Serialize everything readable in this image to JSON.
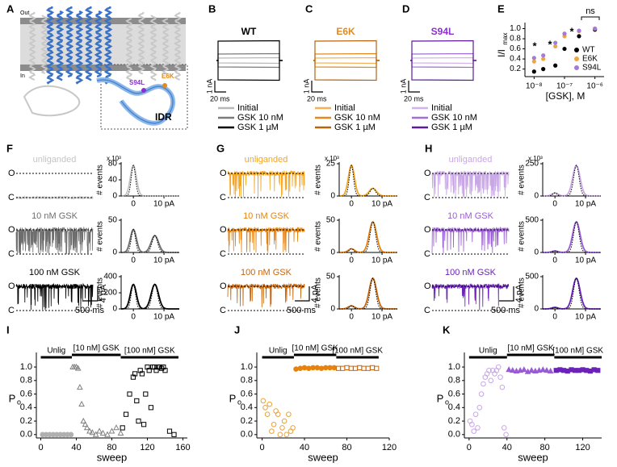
{
  "panels": {
    "A": {
      "label": "A",
      "out": "Out",
      "in": "In",
      "mut1": "S94L",
      "mut2": "E6K",
      "box": "IDR"
    },
    "B": {
      "label": "B",
      "title": "WT",
      "title_color": "#000000",
      "scale_y": "1 nA",
      "scale_x": "20 ms",
      "legend": [
        "Initial",
        "GSK 10 nM",
        "GSK 1 µM"
      ],
      "colors": [
        "#b8b8b8",
        "#7a7a7a",
        "#000000"
      ]
    },
    "C": {
      "label": "C",
      "title": "E6K",
      "title_color": "#e08a20",
      "scale_y": "1 nA",
      "scale_x": "20 ms",
      "legend": [
        "Initial",
        "GSK 10 nM",
        "GSK 1 µM"
      ],
      "colors": [
        "#f3b25a",
        "#e08a20",
        "#b8640f"
      ]
    },
    "D": {
      "label": "D",
      "title": "S94L",
      "title_color": "#8a2fd0",
      "scale_y": "1 nA",
      "scale_x": "20 ms",
      "legend": [
        "Initial",
        "GSK 10 nM",
        "GSK 1 µM"
      ],
      "colors": [
        "#d3b4ea",
        "#a06ed6",
        "#5d1a9c"
      ]
    },
    "E": {
      "label": "E",
      "ylabel": "I/I",
      "ylabel_sub": "max",
      "xlabel": "[GSK], M",
      "log_x": true,
      "xlim": [
        5e-09,
        2e-06
      ],
      "xticks": [
        {
          "value": 1e-08,
          "label": "10⁻⁸"
        },
        {
          "value": 1e-07,
          "label": "10⁻⁷"
        },
        {
          "value": 1e-06,
          "label": "10⁻⁶"
        }
      ],
      "ylim": [
        0.05,
        1.12
      ],
      "yticks": [
        0.2,
        0.4,
        0.6,
        0.8,
        {
          "value": 1,
          "label": "1.0"
        }
      ],
      "annotations": [
        "*",
        "*",
        "*",
        "ns"
      ],
      "series": [
        {
          "name": "WT",
          "color": "#000000",
          "x": [
            1e-08,
            2e-08,
            5e-08,
            1e-07,
            3e-07,
            1e-06
          ],
          "values": [
            0.15,
            0.2,
            0.27,
            0.6,
            0.85,
            0.98
          ]
        },
        {
          "name": "E6K",
          "color": "#f0a640",
          "x": [
            1e-08,
            2e-08,
            5e-08,
            1e-07,
            3e-07,
            1e-06
          ],
          "values": [
            0.35,
            0.4,
            0.65,
            0.85,
            0.95,
            1.0
          ]
        },
        {
          "name": "S94L",
          "color": "#a57ad8",
          "x": [
            1e-08,
            2e-08,
            5e-08,
            1e-07,
            3e-07,
            1e-06
          ],
          "values": [
            0.42,
            0.47,
            0.72,
            0.9,
            0.96,
            1.0
          ]
        }
      ]
    },
    "F": {
      "label": "F",
      "open": "O",
      "closed": "C",
      "hist_ylabel": "# events",
      "multiplier": "x 10³",
      "hist_xlim": [
        -4,
        15
      ],
      "hist_xticks": [
        0,
        {
          "value": 10,
          "label": "10 pA"
        }
      ],
      "scale_y": "4 pA",
      "scale_x": "500 ms",
      "rows": [
        {
          "label": "unliganded",
          "color": "#c4c4c4",
          "hist_yticks": [
            0,
            40,
            80
          ]
        },
        {
          "label": "10 nM GSK",
          "color": "#6e6e6e",
          "hist_yticks": [
            0,
            50
          ]
        },
        {
          "label": "100 nM GSK",
          "color": "#000000",
          "hist_yticks": [
            0,
            200,
            400
          ]
        }
      ]
    },
    "G": {
      "label": "G",
      "open": "O",
      "closed": "C",
      "hist_ylabel": "# events",
      "multiplier": "x 10³",
      "hist_xlim": [
        -4,
        15
      ],
      "hist_xticks": [
        0,
        {
          "value": 10,
          "label": "10 pA"
        }
      ],
      "scale_y": "4 pA",
      "scale_x": "500 ms",
      "rows": [
        {
          "label": "unliganded",
          "color": "#f5a623",
          "hist_yticks": [
            0,
            25
          ]
        },
        {
          "label": "10 nM GSK",
          "color": "#e8820e",
          "hist_yticks": [
            0,
            50
          ]
        },
        {
          "label": "100 nM GSK",
          "color": "#c8650a",
          "hist_yticks": [
            0,
            50
          ]
        }
      ]
    },
    "H": {
      "label": "H",
      "open": "O",
      "closed": "C",
      "hist_ylabel": "# events",
      "multiplier": "x 10³",
      "hist_xlim": [
        -4,
        15
      ],
      "hist_xticks": [
        0,
        {
          "value": 10,
          "label": "10 pA"
        }
      ],
      "scale_y": "4 pA",
      "scale_x": "500 ms",
      "rows": [
        {
          "label": "unliganded",
          "color": "#c9a6e6",
          "hist_yticks": [
            0,
            250
          ]
        },
        {
          "label": "10 nM GSK",
          "color": "#9a5bd6",
          "hist_yticks": [
            0,
            500
          ]
        },
        {
          "label": "100 nM GSK",
          "color": "#6a22b8",
          "hist_yticks": [
            0,
            500
          ]
        }
      ]
    },
    "I": {
      "label": "I",
      "ylabel": "P",
      "ylabel_sub": "o",
      "xlabel": "sweep",
      "xlim": [
        -5,
        165
      ],
      "xticks": [
        0,
        40,
        80,
        120,
        160
      ],
      "ylim": [
        -0.05,
        1.12
      ],
      "yticks": [
        {
          "value": 0,
          "label": "0.0"
        },
        0.2,
        0.4,
        0.6,
        0.8,
        {
          "value": 1,
          "label": "1.0"
        }
      ],
      "periods": [
        {
          "label": "Unlig",
          "from": 0,
          "to": 35
        },
        {
          "label": "[10 nM] GSK",
          "from": 35,
          "to": 90
        },
        {
          "label": "[100 nM] GSK",
          "from": 90,
          "to": 155
        }
      ],
      "series": [
        {
          "marker": "circle",
          "filled": true,
          "color": "#b0b0b0",
          "x": [
            2,
            6,
            10,
            14,
            18,
            22,
            26,
            30,
            34
          ],
          "values": [
            0,
            0,
            0,
            0,
            0,
            0,
            0,
            0,
            0
          ]
        },
        {
          "marker": "triangle",
          "filled": false,
          "color": "#808080",
          "x": [
            36,
            38,
            40,
            42,
            44,
            46,
            48,
            50,
            52,
            55,
            58,
            62,
            66,
            70,
            75,
            80,
            85,
            90
          ],
          "values": [
            1,
            1,
            1,
            0.98,
            0.7,
            0.45,
            0.2,
            0.15,
            0.1,
            0.05,
            0.03,
            0,
            0.05,
            0.02,
            0,
            0.05,
            0.1,
            0.02
          ]
        },
        {
          "marker": "square",
          "filled": false,
          "color": "#000000",
          "x": [
            92,
            96,
            100,
            104,
            106,
            108,
            110,
            112,
            114,
            116,
            118,
            120,
            122,
            124,
            126,
            128,
            130,
            132,
            134,
            136,
            138,
            140,
            145,
            150
          ],
          "values": [
            0.1,
            0.3,
            0.6,
            0.85,
            0.9,
            0.5,
            0.2,
            0.95,
            0.9,
            0.15,
            0.6,
            1,
            0.95,
            0.4,
            1,
            1,
            0.95,
            1,
            1,
            0.98,
            1,
            0.95,
            0.05,
            0
          ]
        }
      ]
    },
    "J": {
      "label": "J",
      "ylabel": "P",
      "ylabel_sub": "o",
      "xlabel": "sweep",
      "xlim": [
        -5,
        120
      ],
      "xticks": [
        0,
        40,
        80,
        120
      ],
      "ylim": [
        -0.05,
        1.12
      ],
      "yticks": [
        {
          "value": 0,
          "label": "0.0"
        },
        0.2,
        0.4,
        0.6,
        0.8,
        {
          "value": 1,
          "label": "1.0"
        }
      ],
      "periods": [
        {
          "label": "Unlig",
          "from": 0,
          "to": 30
        },
        {
          "label": "[10 nM] GSK",
          "from": 30,
          "to": 70
        },
        {
          "label": "[100 nM] GSK",
          "from": 70,
          "to": 110
        }
      ],
      "series": [
        {
          "marker": "circle",
          "filled": false,
          "color": "#e8a23a",
          "x": [
            1,
            3,
            5,
            7,
            9,
            11,
            13,
            15,
            17,
            19,
            21,
            23,
            25,
            27,
            29
          ],
          "values": [
            0.5,
            0.4,
            0.3,
            0.45,
            0.05,
            0.15,
            0.35,
            0.3,
            0,
            0.1,
            0.2,
            0,
            0.3,
            0.05,
            0.1
          ]
        },
        {
          "marker": "circle",
          "filled": true,
          "color": "#e8820e",
          "x": [
            32,
            36,
            40,
            44,
            48,
            52,
            56,
            60,
            64,
            68
          ],
          "values": [
            0.97,
            0.98,
            0.99,
            0.98,
            0.99,
            0.99,
            0.98,
            0.99,
            0.99,
            0.99
          ]
        },
        {
          "marker": "square",
          "filled": false,
          "color": "#c8650a",
          "x": [
            72,
            76,
            80,
            84,
            88,
            92,
            96,
            100,
            104,
            108
          ],
          "values": [
            0.98,
            0.98,
            0.99,
            0.98,
            0.98,
            0.99,
            0.98,
            0.98,
            0.99,
            0.98
          ]
        }
      ]
    },
    "K": {
      "label": "K",
      "ylabel": "P",
      "ylabel_sub": "o",
      "xlabel": "sweep",
      "xlim": [
        -5,
        140
      ],
      "xticks": [
        0,
        40,
        80,
        120
      ],
      "ylim": [
        -0.05,
        1.12
      ],
      "yticks": [
        {
          "value": 0,
          "label": "0.0"
        },
        0.2,
        0.4,
        0.6,
        0.8,
        {
          "value": 1,
          "label": "1.0"
        }
      ],
      "periods": [
        {
          "label": "Unlig",
          "from": 0,
          "to": 40
        },
        {
          "label": "[10 nM] GSK",
          "from": 40,
          "to": 90
        },
        {
          "label": "[100 nM] GSK",
          "from": 90,
          "to": 140
        }
      ],
      "series": [
        {
          "marker": "circle",
          "filled": false,
          "color": "#c9a6e6",
          "x": [
            1,
            3,
            5,
            7,
            9,
            11,
            13,
            15,
            17,
            19,
            21,
            23,
            25,
            27,
            29,
            31,
            33,
            35,
            37,
            39
          ],
          "values": [
            0.2,
            0.15,
            0.05,
            0.3,
            0.1,
            0.4,
            0.6,
            0.75,
            0.85,
            0.9,
            0.95,
            0.8,
            0.95,
            0.9,
            0.95,
            1,
            0.85,
            0.7,
            0.1,
            0
          ]
        },
        {
          "marker": "triangle",
          "filled": true,
          "color": "#9a5bd6",
          "x": [
            42,
            46,
            50,
            54,
            58,
            62,
            66,
            70,
            74,
            78,
            82,
            86
          ],
          "values": [
            0.96,
            0.95,
            0.94,
            0.95,
            0.96,
            0.93,
            0.95,
            0.94,
            0.95,
            0.96,
            0.95,
            0.94
          ]
        },
        {
          "marker": "square",
          "filled": true,
          "color": "#6a22b8",
          "x": [
            92,
            96,
            100,
            104,
            108,
            112,
            116,
            120,
            124,
            128,
            132,
            136
          ],
          "values": [
            0.95,
            0.96,
            0.95,
            0.94,
            0.96,
            0.95,
            0.95,
            0.96,
            0.95,
            0.94,
            0.96,
            0.95
          ]
        }
      ]
    }
  }
}
